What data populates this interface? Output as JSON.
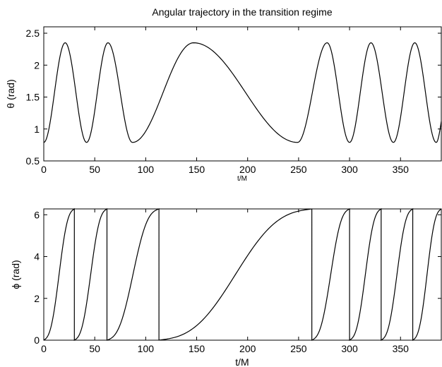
{
  "chart_data": [
    {
      "type": "line",
      "title": "Angular trajectory in the transition regime",
      "xlabel": "t/M",
      "ylabel": "θ (rad)",
      "xlim": [
        0,
        390
      ],
      "ylim": [
        0.5,
        2.6
      ],
      "xticks": [
        0,
        50,
        100,
        150,
        200,
        250,
        300,
        350
      ],
      "xticklabels": [
        "0",
        "50",
        "100",
        "150",
        "200",
        "250",
        "300",
        "350"
      ],
      "yticks": [
        0.5,
        1,
        1.5,
        2,
        2.5
      ],
      "yticklabels": [
        "0.5",
        "1",
        "1.5",
        "2",
        "2.5"
      ],
      "grid": false,
      "series": [
        {
          "x": [
            0,
            10.5,
            21,
            31.5,
            42,
            52.5,
            63,
            75,
            87,
            117,
            147,
            198,
            249,
            263.5,
            278,
            289,
            300,
            310.5,
            321,
            332,
            343,
            353.5,
            364,
            374.5,
            385,
            390
          ],
          "y": [
            0.79,
            1.57,
            2.35,
            1.57,
            0.79,
            1.57,
            2.35,
            1.57,
            0.79,
            1.57,
            2.35,
            1.57,
            0.79,
            1.57,
            2.35,
            1.57,
            0.79,
            1.57,
            2.35,
            1.57,
            0.79,
            1.57,
            2.35,
            1.57,
            0.79,
            1.12
          ]
        }
      ]
    },
    {
      "type": "line",
      "title": "",
      "xlabel": "t/M",
      "ylabel": "ϕ (rad)",
      "xlim": [
        0,
        390
      ],
      "ylim": [
        0,
        6.28
      ],
      "xticks": [
        0,
        50,
        100,
        150,
        200,
        250,
        300,
        350
      ],
      "xticklabels": [
        "0",
        "50",
        "100",
        "150",
        "200",
        "250",
        "300",
        "350"
      ],
      "yticks": [
        0,
        2,
        4,
        6
      ],
      "yticklabels": [
        "0",
        "2",
        "4",
        "6"
      ],
      "grid": false,
      "series": [
        {
          "segments": [
            {
              "t0": 0,
              "t1": 30,
              "phi0": 0,
              "phi1": 6.28
            },
            {
              "t0": 30,
              "t1": 62,
              "phi0": 0,
              "phi1": 6.28
            },
            {
              "t0": 62,
              "t1": 113,
              "phi0": 0,
              "phi1": 6.28
            },
            {
              "t0": 113,
              "t1": 263,
              "phi0": 0,
              "phi1": 6.28
            },
            {
              "t0": 263,
              "t1": 300,
              "phi0": 0,
              "phi1": 6.28
            },
            {
              "t0": 300,
              "t1": 331,
              "phi0": 0,
              "phi1": 6.28
            },
            {
              "t0": 331,
              "t1": 362,
              "phi0": 0,
              "phi1": 6.28
            },
            {
              "t0": 362,
              "t1": 390,
              "phi0": 0,
              "phi1": 6.28
            }
          ],
          "wraps": [
            30,
            62,
            113,
            263,
            300,
            331,
            362
          ]
        }
      ]
    }
  ]
}
